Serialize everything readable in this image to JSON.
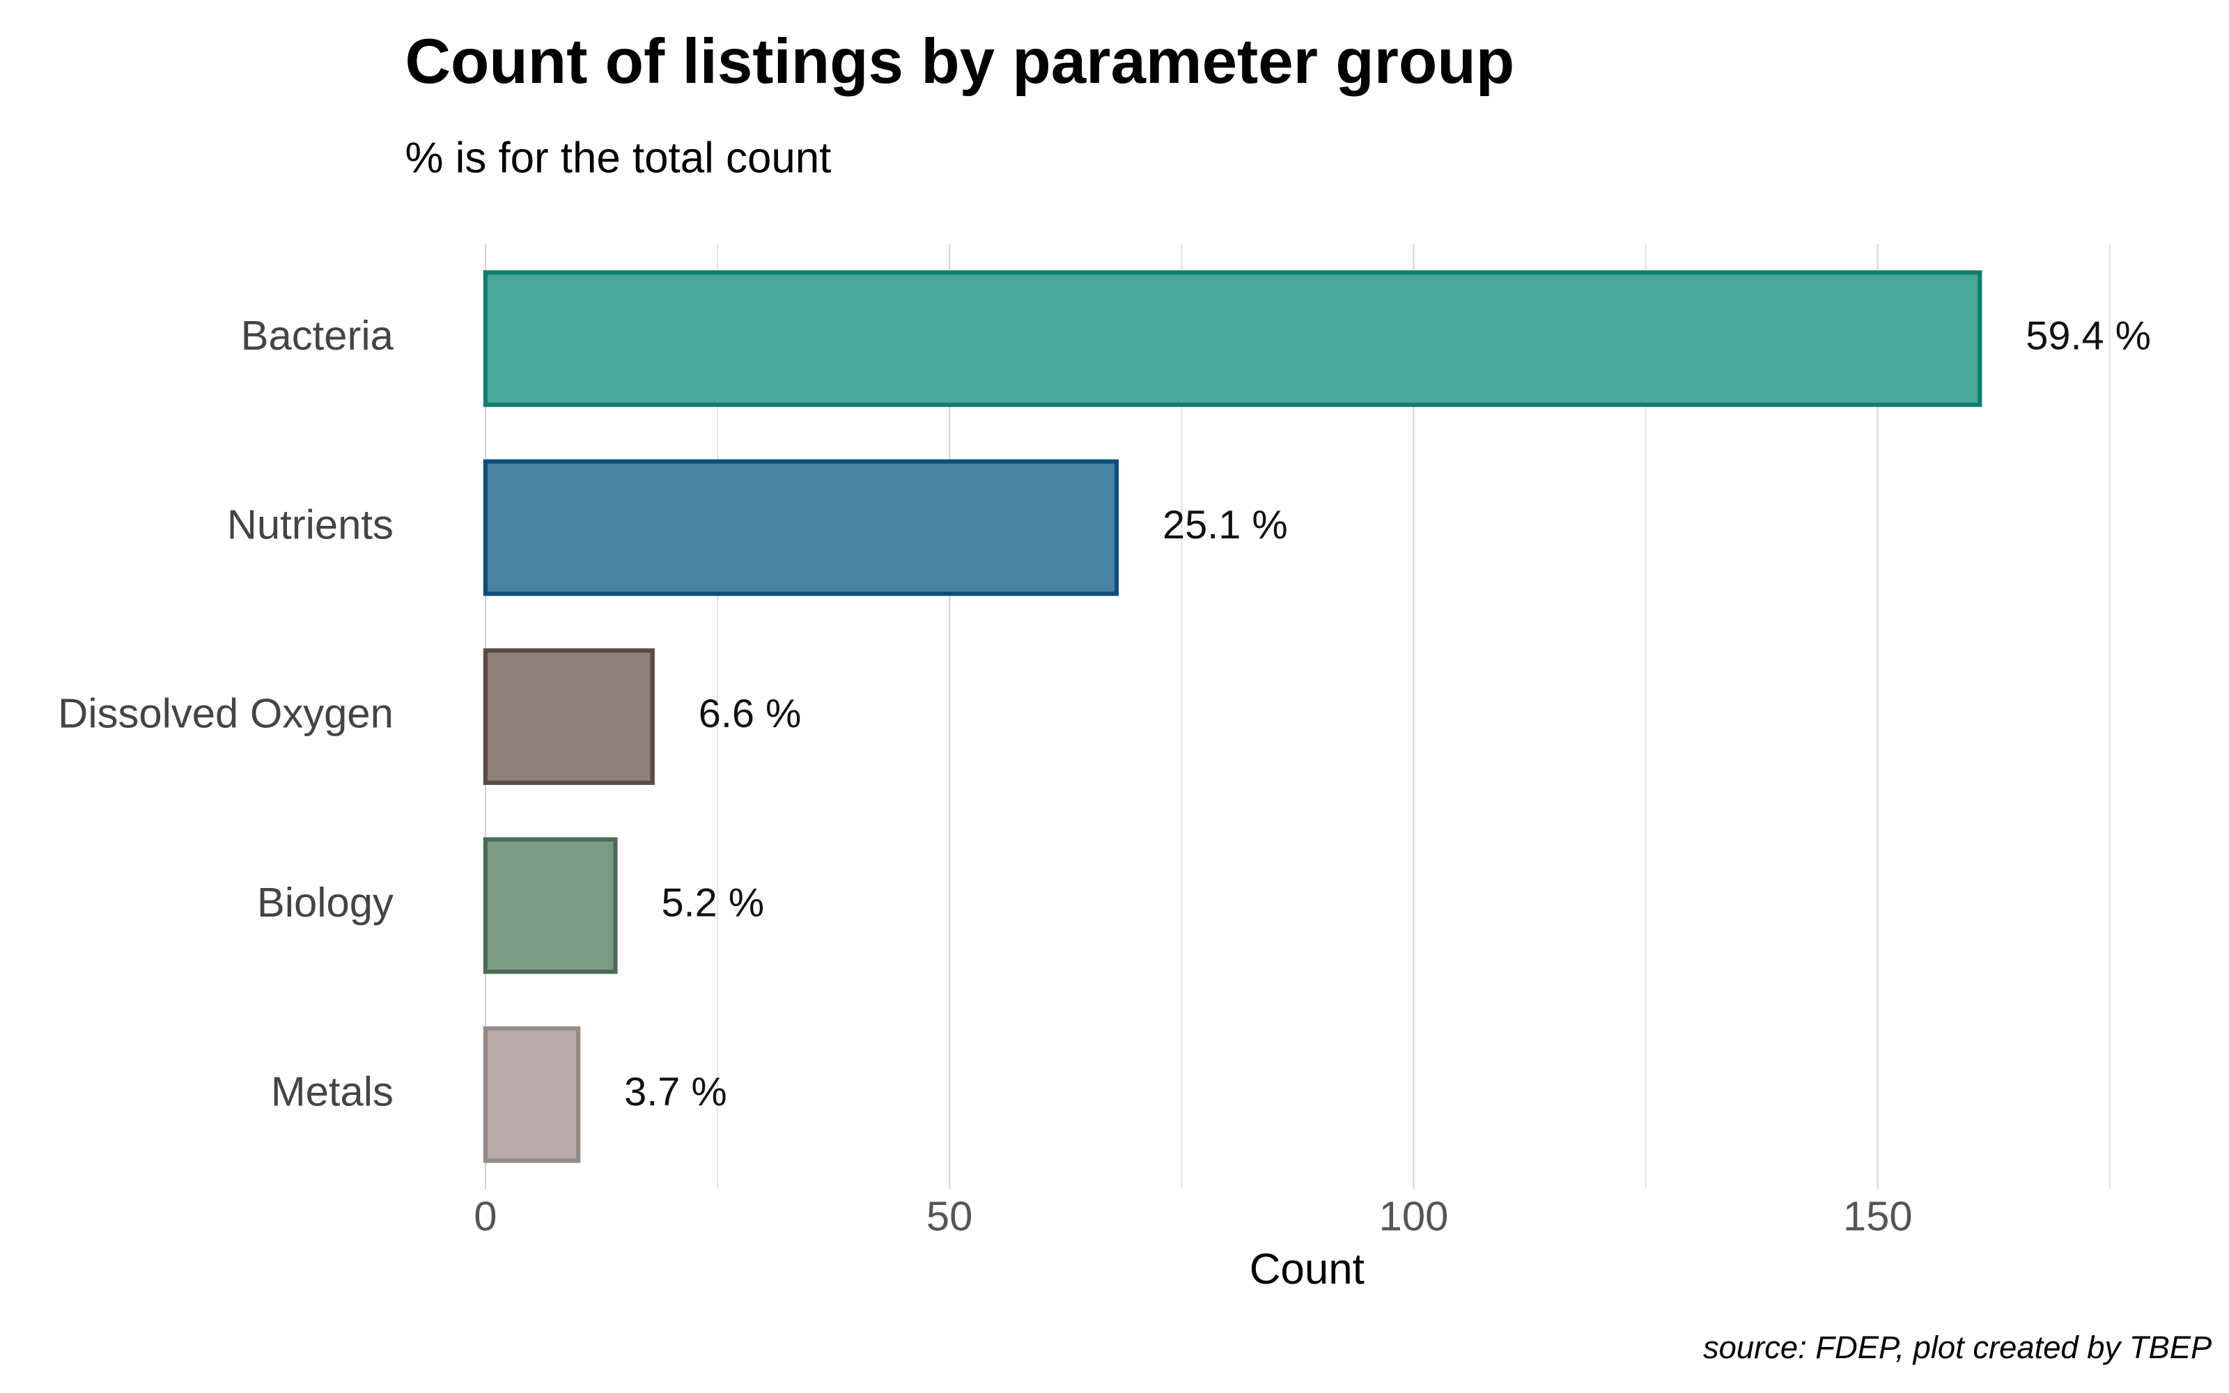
{
  "chart_data": {
    "type": "bar",
    "orientation": "horizontal",
    "title": "Count of listings by parameter group",
    "subtitle": "% is for the total count",
    "x_label": "Count",
    "caption": "source: FDEP, plot created by TBEP",
    "categories": [
      "Bacteria",
      "Nutrients",
      "Dissolved Oxygen",
      "Biology",
      "Metals"
    ],
    "values": [
      161,
      68,
      18,
      14,
      10
    ],
    "data_labels": [
      "59.4 %",
      "25.1 %",
      "6.6 %",
      "5.2 %",
      "3.7 %"
    ],
    "colors": [
      "#4aa89a",
      "#4a82a4",
      "#8b807a",
      "#7a9c87",
      "#b5aca9"
    ],
    "edge_colors": [
      "#0e7f6e",
      "#0f4c7c",
      "#5b4a43",
      "#4c6b57",
      "#958a86"
    ],
    "xlim": [
      0,
      175
    ],
    "xticks": [
      0,
      50,
      100,
      150
    ],
    "minor_xgrid": [
      25,
      75,
      125,
      175
    ],
    "grid": true
  }
}
